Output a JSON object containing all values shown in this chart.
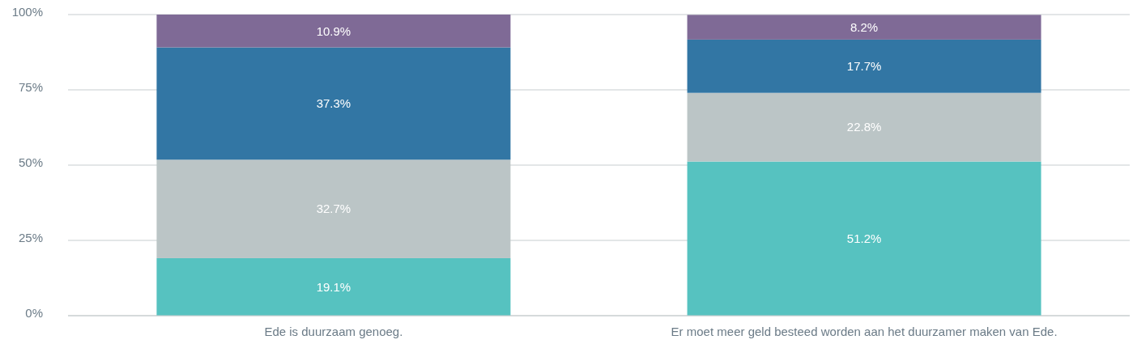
{
  "chart_data": {
    "type": "bar",
    "stacked": true,
    "categories": [
      "Ede is duurzaam genoeg.",
      "Er moet meer geld besteed worden aan het duurzamer maken van Ede."
    ],
    "series": [
      {
        "color": "#56c2c0",
        "values": [
          19.1,
          51.2
        ],
        "value_labels": [
          "19.1%",
          "51.2%"
        ]
      },
      {
        "color": "#bbc5c6",
        "values": [
          32.7,
          22.8
        ],
        "value_labels": [
          "32.7%",
          "22.8%"
        ]
      },
      {
        "color": "#3276a4",
        "values": [
          37.3,
          17.7
        ],
        "value_labels": [
          "37.3%",
          "17.7%"
        ]
      },
      {
        "color": "#7f6a96",
        "values": [
          10.9,
          8.2
        ],
        "value_labels": [
          "10.9%",
          "8.2%"
        ]
      }
    ],
    "ylim": [
      0,
      100
    ],
    "yticks": [
      {
        "value": 0,
        "label": "0%"
      },
      {
        "value": 25,
        "label": "25%"
      },
      {
        "value": 50,
        "label": "50%"
      },
      {
        "value": 75,
        "label": "75%"
      },
      {
        "value": 100,
        "label": "100%"
      }
    ],
    "grid": "y"
  }
}
